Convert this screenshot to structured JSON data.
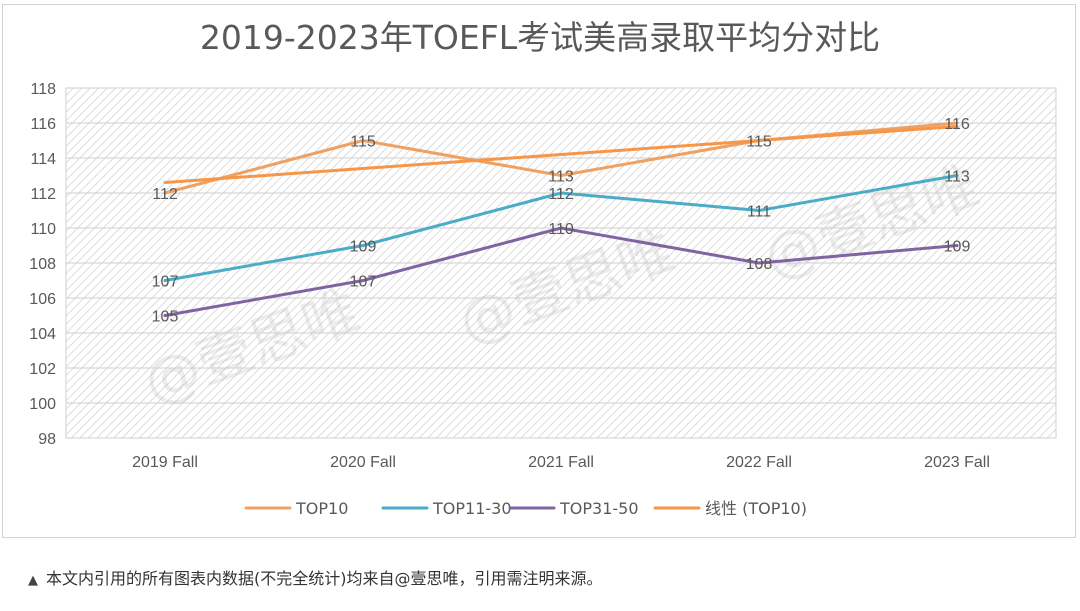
{
  "chart_data": {
    "type": "line",
    "title": "2019-2023年TOEFL考试美高录取平均分对比",
    "categories": [
      "2019 Fall",
      "2020 Fall",
      "2021 Fall",
      "2022 Fall",
      "2023 Fall"
    ],
    "ylim": [
      98,
      118
    ],
    "ystep": 2,
    "grid": "horizontal",
    "legend_position": "bottom",
    "series": [
      {
        "name": "TOP10",
        "values": [
          112,
          115,
          113,
          115,
          116
        ],
        "color": "#f0a060"
      },
      {
        "name": "TOP11-30",
        "values": [
          107,
          109,
          112,
          111,
          113
        ],
        "color": "#4aacc6"
      },
      {
        "name": "TOP31-50",
        "values": [
          105,
          107,
          110,
          108,
          109
        ],
        "color": "#8064a2"
      }
    ],
    "trendline": {
      "name": "线性 (TOP10)",
      "type": "linear",
      "of": "TOP10",
      "color": "#f79646"
    }
  },
  "watermarks": [
    "@壹思唯",
    "@壹思唯",
    "@壹思唯"
  ],
  "footnote": {
    "marker": "▲",
    "text": "本文内引用的所有图表内数据(不完全统计)均来自@壹思唯，引用需注明来源。"
  }
}
